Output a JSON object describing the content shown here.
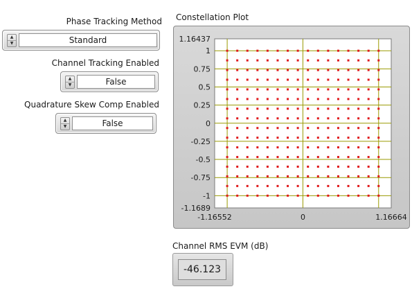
{
  "phase_tracking": {
    "label": "Phase Tracking Method",
    "value": "Standard"
  },
  "channel_tracking": {
    "label": "Channel Tracking Enabled",
    "value": "False"
  },
  "quadrature_skew": {
    "label": "Quadrature Skew Comp Enabled",
    "value": "False"
  },
  "constellation": {
    "title": "Constellation Plot",
    "x_ticks": [
      "-1.16552",
      "0",
      "1.16664"
    ],
    "y_ticks": [
      "1.16437",
      "1",
      "0.75",
      "0.5",
      "0.25",
      "0",
      "-0.25",
      "-0.5",
      "-0.75",
      "-1",
      "-1.1689"
    ],
    "colors": {
      "plot_bg": "#ffffff",
      "grid": "#9a9a00",
      "points": "#e0191b"
    }
  },
  "chart_data": {
    "type": "scatter",
    "title": "Constellation Plot",
    "xlim": [
      -1.16552,
      1.16664
    ],
    "ylim": [
      -1.1689,
      1.16437
    ],
    "x_tick_labels": [
      "-1.16552",
      "0",
      "1.16664"
    ],
    "y_tick_labels": [
      "1.16437",
      "1",
      "0.75",
      "0.5",
      "0.25",
      "0",
      "-0.25",
      "-0.5",
      "-0.75",
      "-1",
      "-1.1689"
    ],
    "grid": true,
    "series": [
      {
        "marker_color": "#e0191b",
        "grid_levels": [
          -1.0,
          -0.8667,
          -0.7333,
          -0.6,
          -0.4667,
          -0.3333,
          -0.2,
          -0.0667,
          0.0667,
          0.2,
          0.3333,
          0.4667,
          0.6,
          0.7333,
          0.8667,
          1.0
        ]
      }
    ]
  },
  "evm": {
    "label": "Channel RMS EVM (dB)",
    "value": "-46.123"
  }
}
